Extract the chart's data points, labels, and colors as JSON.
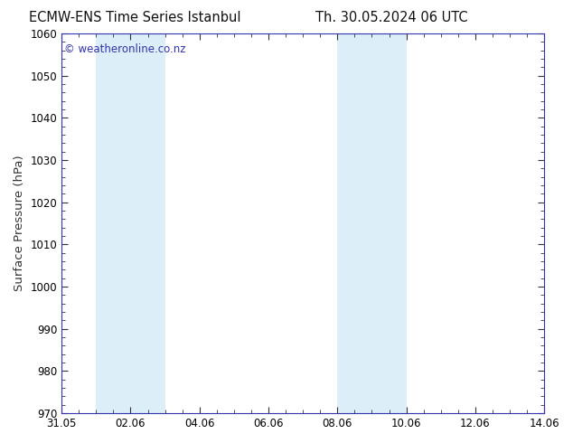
{
  "title_left": "ECMW-ENS Time Series Istanbul",
  "title_right": "Th. 30.05.2024 06 UTC",
  "ylabel": "Surface Pressure (hPa)",
  "ylim": [
    970,
    1060
  ],
  "yticks": [
    970,
    980,
    990,
    1000,
    1010,
    1020,
    1030,
    1040,
    1050,
    1060
  ],
  "x_start": "2024-05-31",
  "x_end": "2024-06-14",
  "xtick_labels": [
    "31.05",
    "02.06",
    "04.06",
    "06.06",
    "08.06",
    "10.06",
    "12.06",
    "14.06"
  ],
  "xtick_dates": [
    "2024-05-31",
    "2024-06-02",
    "2024-06-04",
    "2024-06-06",
    "2024-06-08",
    "2024-06-10",
    "2024-06-12",
    "2024-06-14"
  ],
  "shaded_regions": [
    {
      "x_start": "2024-06-01",
      "x_end": "2024-06-02"
    },
    {
      "x_start": "2024-06-02",
      "x_end": "2024-06-03"
    },
    {
      "x_start": "2024-06-08",
      "x_end": "2024-06-09"
    },
    {
      "x_start": "2024-06-09",
      "x_end": "2024-06-10"
    }
  ],
  "shade_color": "#dceef8",
  "background_color": "#ffffff",
  "border_color": "#3333aa",
  "watermark_text": "© weatheronline.co.nz",
  "watermark_color": "#3333aa",
  "watermark_fontsize": 8.5,
  "title_fontsize": 10.5,
  "tick_fontsize": 8.5,
  "ylabel_fontsize": 9.5,
  "title_color": "#111111"
}
